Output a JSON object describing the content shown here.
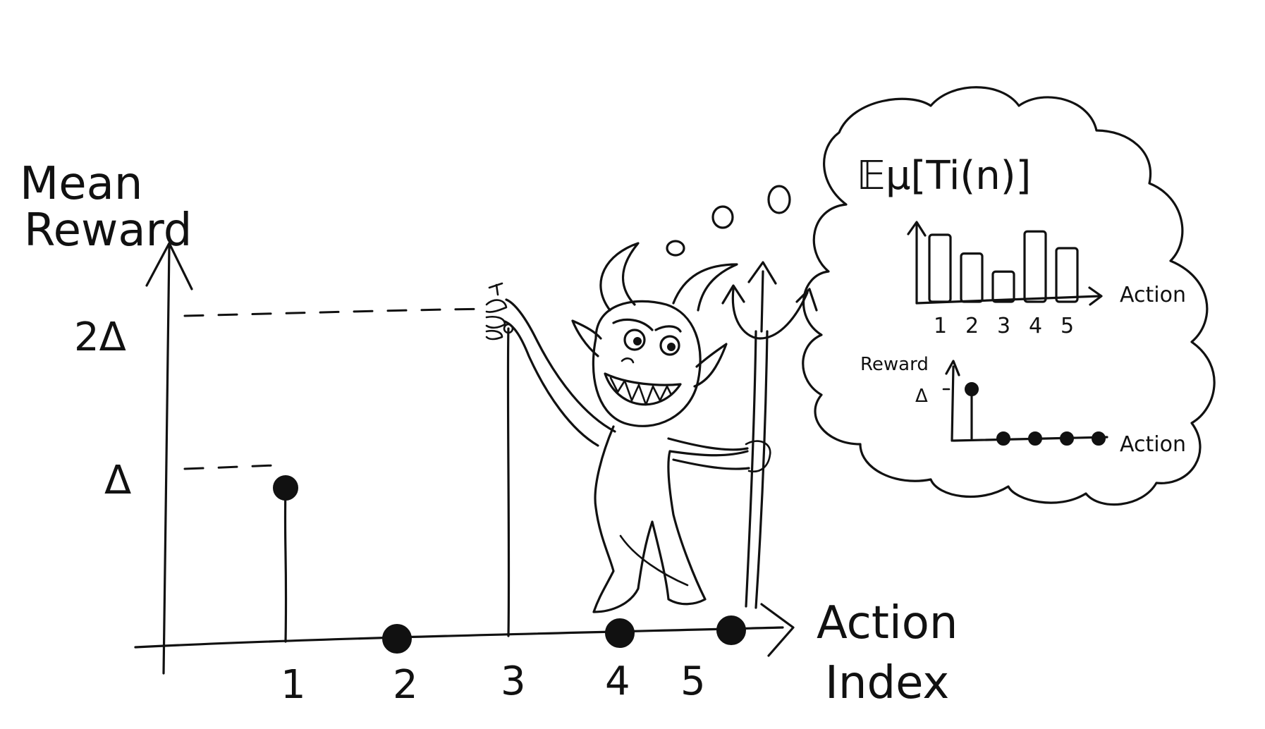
{
  "main_plot": {
    "y_label_line1": "Mean",
    "y_label_line2": "Reward",
    "x_label_line1": "Action",
    "x_label_line2": "Index",
    "y_ticks": [
      "2Δ",
      "Δ"
    ],
    "x_ticks": [
      "1",
      "2",
      "3",
      "4",
      "5"
    ]
  },
  "thought_bubble": {
    "expectation_label": "𝔼μ[Ti(n)]",
    "bar_chart": {
      "x_label": "Action",
      "x_ticks": [
        "1",
        "2",
        "3",
        "4",
        "5"
      ],
      "values_relative": [
        1.0,
        0.72,
        0.45,
        1.05,
        0.8
      ]
    },
    "reward_chart": {
      "y_label": "Reward",
      "y_tick": "Δ",
      "x_label": "Action",
      "values_delta": [
        1,
        0,
        0,
        0,
        0
      ]
    }
  },
  "chart_data": {
    "type": "scatter",
    "x": [
      1,
      2,
      3,
      4,
      5
    ],
    "y": [
      1,
      0,
      2,
      0,
      0
    ],
    "y_units": "Δ",
    "xlabel": "Action Index",
    "ylabel": "Mean Reward",
    "yticks": [
      "Δ",
      "2Δ"
    ],
    "grid": false
  }
}
